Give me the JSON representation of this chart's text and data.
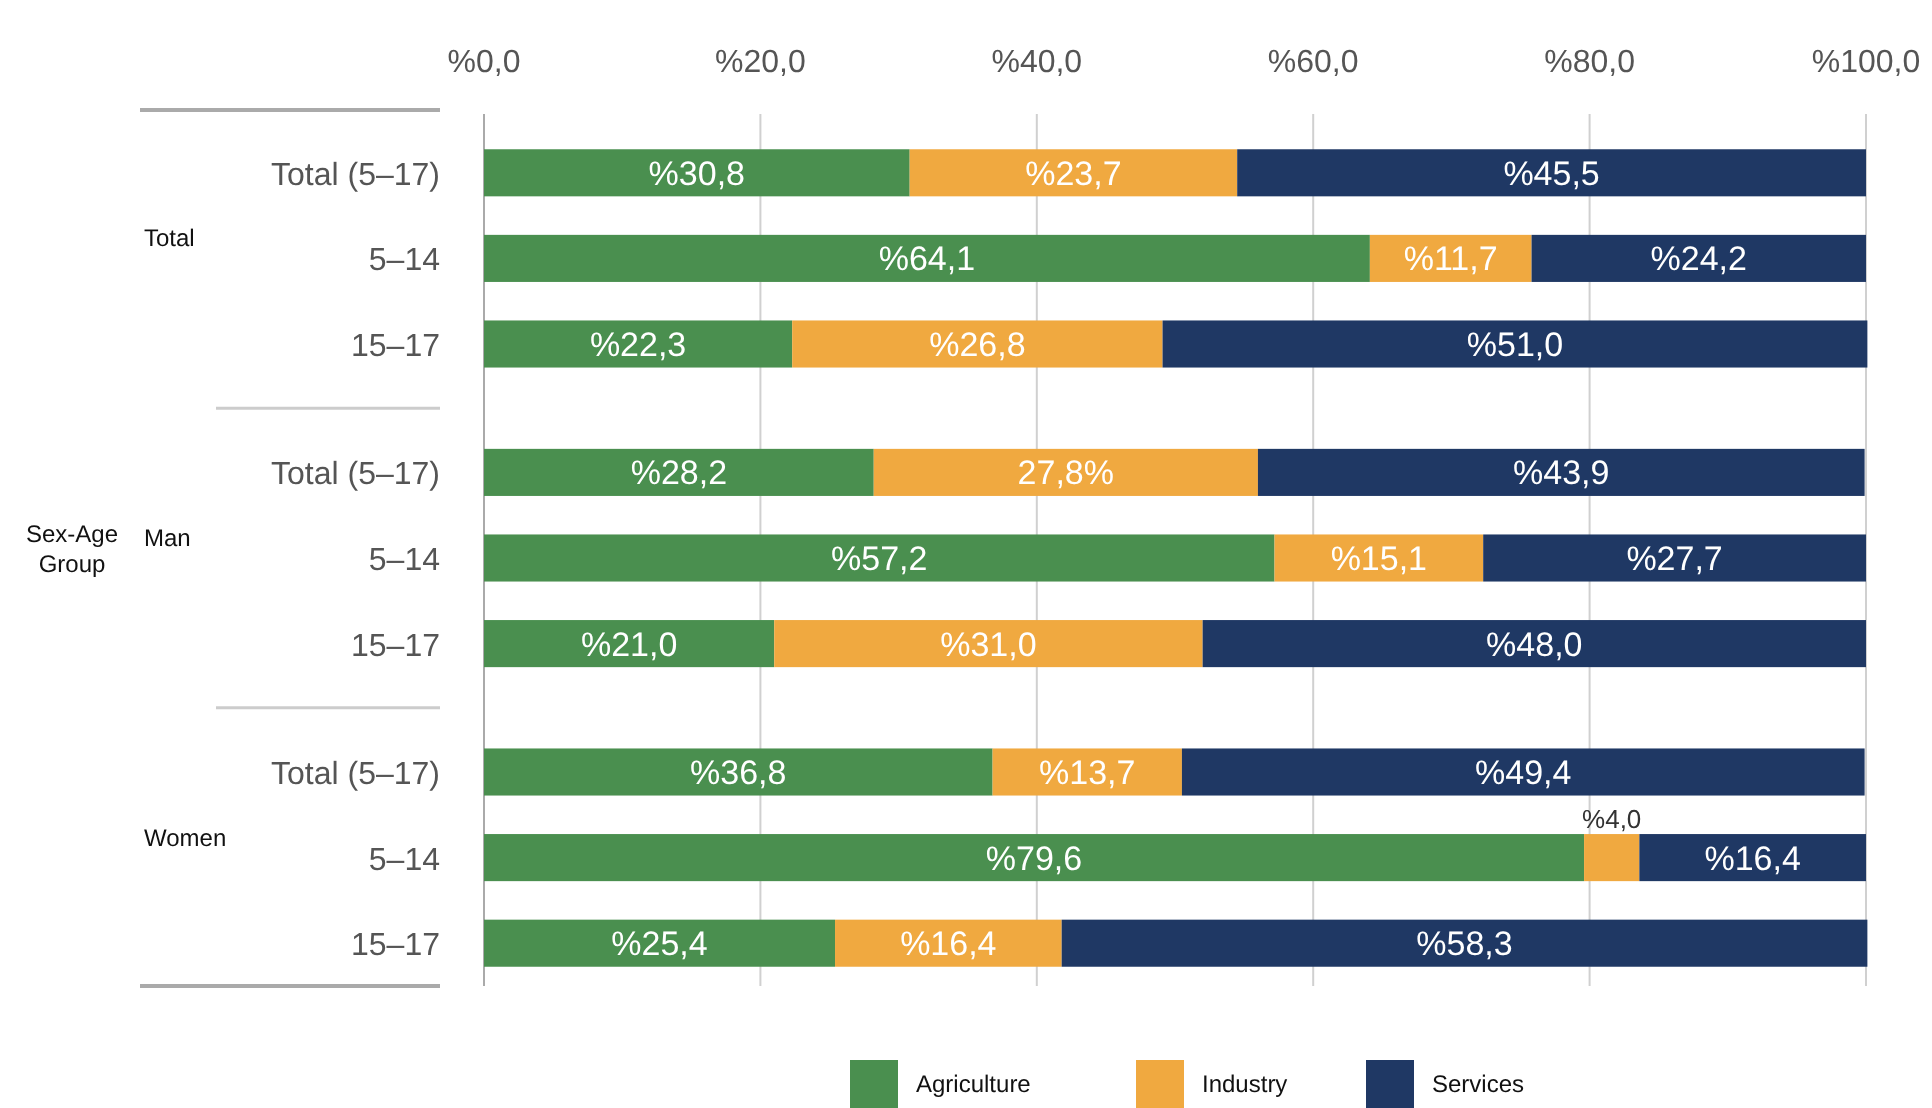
{
  "chart_data": {
    "type": "bar",
    "orientation": "horizontal",
    "stacked": true,
    "annotations": [
      "Sex-Age Group",
      "Total",
      "Man",
      "Women"
    ],
    "categories": [
      "Total (5–17)",
      "5–14",
      "15–17",
      "Total (5–17)",
      "5–14",
      "15–17",
      "Total (5–17)",
      "5–14",
      "15–17"
    ],
    "series": [
      {
        "name": "Agriculture",
        "color": "#4a8f4f",
        "values": [
          30.8,
          64.1,
          22.3,
          28.2,
          57.2,
          21.0,
          36.8,
          79.6,
          25.4
        ],
        "value_labels": [
          "%30,8",
          "%64,1",
          "%22,3",
          "%28,2",
          "%57,2",
          "%21,0",
          "%36,8",
          "%79,6",
          "%25,4"
        ]
      },
      {
        "name": "Industry",
        "color": "#f0a940",
        "values": [
          23.7,
          11.7,
          26.8,
          27.8,
          15.1,
          31.0,
          13.7,
          4.0,
          16.4
        ],
        "value_labels": [
          "%23,7",
          "%11,7",
          "%26,8",
          "27,8%",
          "%15,1",
          "%31,0",
          "%13,7",
          "%4,0",
          "%16,4"
        ]
      },
      {
        "name": "Services",
        "color": "#1f3864",
        "values": [
          45.5,
          24.2,
          51.0,
          43.9,
          27.7,
          48.0,
          49.4,
          16.4,
          58.3
        ],
        "value_labels": [
          "%45,5",
          "%24,2",
          "%51,0",
          "%43,9",
          "%27,7",
          "%48,0",
          "%49,4",
          "%16,4",
          "%58,3"
        ]
      }
    ],
    "xlim": [
      0,
      100
    ],
    "xticks": [
      {
        "value": 0,
        "label": "%0,0"
      },
      {
        "value": 20,
        "label": "%20,0"
      },
      {
        "value": 40,
        "label": "%40,0"
      },
      {
        "value": 60,
        "label": "%60,0"
      },
      {
        "value": 80,
        "label": "%80,0"
      },
      {
        "value": 100,
        "label": "%100,0"
      }
    ],
    "grid": "x",
    "legend": "bottom"
  }
}
